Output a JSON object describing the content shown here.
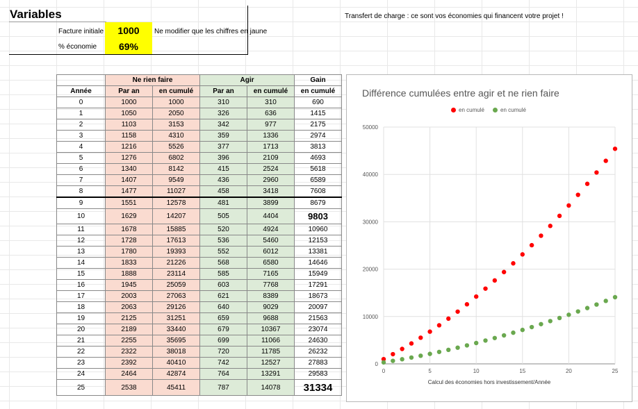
{
  "variables": {
    "title": "Variables",
    "facture_label": "Facture initiale",
    "facture_value": "1000",
    "eco_label": "% économie",
    "eco_value": "69%",
    "note_jaune": "Ne modifier que les chiffres en jaune",
    "note_transfert": "Transfert de charge : ce sont vos économies qui financent votre projet !"
  },
  "table": {
    "group_headers": {
      "rien": "Ne rien faire",
      "agir": "Agir",
      "gain": "Gain"
    },
    "col_headers": [
      "Année",
      "Par an",
      "en cumulé",
      "Par an",
      "en cumulé",
      "en cumulé"
    ],
    "rows": [
      [
        "0",
        "1000",
        "1000",
        "310",
        "310",
        "690"
      ],
      [
        "1",
        "1050",
        "2050",
        "326",
        "636",
        "1415"
      ],
      [
        "2",
        "1103",
        "3153",
        "342",
        "977",
        "2175"
      ],
      [
        "3",
        "1158",
        "4310",
        "359",
        "1336",
        "2974"
      ],
      [
        "4",
        "1216",
        "5526",
        "377",
        "1713",
        "3813"
      ],
      [
        "5",
        "1276",
        "6802",
        "396",
        "2109",
        "4693"
      ],
      [
        "6",
        "1340",
        "8142",
        "415",
        "2524",
        "5618"
      ],
      [
        "7",
        "1407",
        "9549",
        "436",
        "2960",
        "6589"
      ],
      [
        "8",
        "1477",
        "11027",
        "458",
        "3418",
        "7608"
      ],
      [
        "9",
        "1551",
        "12578",
        "481",
        "3899",
        "8679"
      ],
      [
        "10",
        "1629",
        "14207",
        "505",
        "4404",
        "9803"
      ],
      [
        "11",
        "1678",
        "15885",
        "520",
        "4924",
        "10960"
      ],
      [
        "12",
        "1728",
        "17613",
        "536",
        "5460",
        "12153"
      ],
      [
        "13",
        "1780",
        "19393",
        "552",
        "6012",
        "13381"
      ],
      [
        "14",
        "1833",
        "21226",
        "568",
        "6580",
        "14646"
      ],
      [
        "15",
        "1888",
        "23114",
        "585",
        "7165",
        "15949"
      ],
      [
        "16",
        "1945",
        "25059",
        "603",
        "7768",
        "17291"
      ],
      [
        "17",
        "2003",
        "27063",
        "621",
        "8389",
        "18673"
      ],
      [
        "18",
        "2063",
        "29126",
        "640",
        "9029",
        "20097"
      ],
      [
        "19",
        "2125",
        "31251",
        "659",
        "9688",
        "21563"
      ],
      [
        "20",
        "2189",
        "33440",
        "679",
        "10367",
        "23074"
      ],
      [
        "21",
        "2255",
        "35695",
        "699",
        "11066",
        "24630"
      ],
      [
        "22",
        "2322",
        "38018",
        "720",
        "11785",
        "26232"
      ],
      [
        "23",
        "2392",
        "40410",
        "742",
        "12527",
        "27883"
      ],
      [
        "24",
        "2464",
        "42874",
        "764",
        "13291",
        "29583"
      ],
      [
        "25",
        "2538",
        "45411",
        "787",
        "14078",
        "31334"
      ]
    ]
  },
  "chart_data": {
    "type": "scatter",
    "title": "Différence cumulées entre agir et ne rien faire",
    "xlabel": "Calcul des économies hors investissement/Année",
    "ylabel": "",
    "xlim": [
      0,
      25
    ],
    "ylim": [
      0,
      50000
    ],
    "x_ticks": [
      0,
      5,
      10,
      15,
      20,
      25
    ],
    "y_ticks": [
      0,
      10000,
      20000,
      30000,
      40000,
      50000
    ],
    "grid": true,
    "legend_position": "top",
    "x": [
      0,
      1,
      2,
      3,
      4,
      5,
      6,
      7,
      8,
      9,
      10,
      11,
      12,
      13,
      14,
      15,
      16,
      17,
      18,
      19,
      20,
      21,
      22,
      23,
      24,
      25
    ],
    "series": [
      {
        "name": "en cumulé",
        "color": "#ff0000",
        "values": [
          1000,
          2050,
          3153,
          4310,
          5526,
          6802,
          8142,
          9549,
          11027,
          12578,
          14207,
          15885,
          17613,
          19393,
          21226,
          23114,
          25059,
          27063,
          29126,
          31251,
          33440,
          35695,
          38018,
          40410,
          42874,
          45411
        ]
      },
      {
        "name": "en cumulé",
        "color": "#6aa84f",
        "values": [
          310,
          636,
          977,
          1336,
          1713,
          2109,
          2524,
          2960,
          3418,
          3899,
          4404,
          4924,
          5460,
          6012,
          6580,
          7165,
          7768,
          8389,
          9029,
          9688,
          10367,
          11066,
          11785,
          12527,
          13291,
          14078
        ]
      }
    ]
  }
}
